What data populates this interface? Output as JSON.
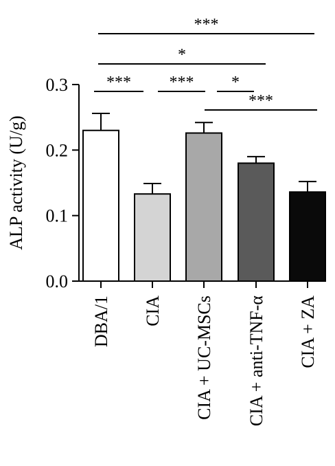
{
  "chart_data": {
    "type": "bar",
    "title": "",
    "ylabel": "ALP activity (U/g)",
    "xlabel": "",
    "ylim": [
      0,
      0.3
    ],
    "yticks": [
      "0.0",
      "0.1",
      "0.2",
      "0.3"
    ],
    "categories": [
      "DBA/1",
      "CIA",
      "CIA + UC-MSCs",
      "CIA + anti-TNF-α",
      "CIA + ZA"
    ],
    "values": [
      0.23,
      0.133,
      0.226,
      0.18,
      0.136
    ],
    "errors": [
      0.026,
      0.016,
      0.016,
      0.01,
      0.016
    ],
    "bar_colors": [
      "#ffffff",
      "#d4d4d4",
      "#a8a8a8",
      "#5a5a5a",
      "#0a0a0a"
    ],
    "significance": [
      {
        "from": 0,
        "to": 4,
        "label": "***"
      },
      {
        "from": 0,
        "to": 3,
        "label": "*"
      },
      {
        "from": 0,
        "to": 1,
        "label": "***"
      },
      {
        "from": 1,
        "to": 2,
        "label": "***"
      },
      {
        "from": 2,
        "to": 3,
        "label": "*"
      },
      {
        "from": 2,
        "to": 4,
        "label": "***"
      }
    ]
  }
}
